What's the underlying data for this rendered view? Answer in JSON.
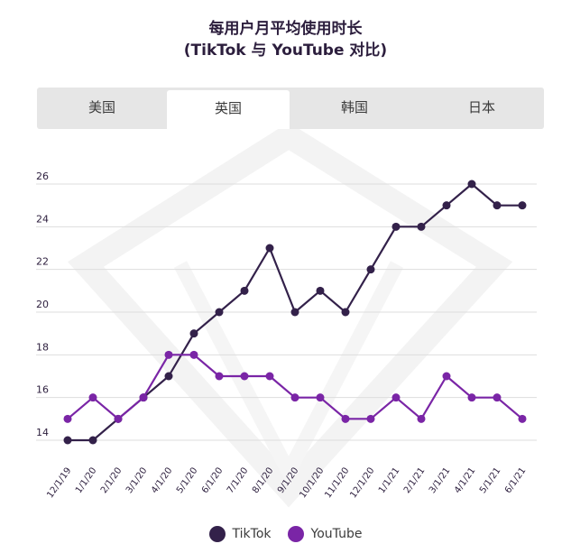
{
  "title_line1": "每用户月平均使用时长",
  "title_line2": "(TikTok 与 YouTube 对比)",
  "tabs": [
    {
      "label": "美国",
      "active": false
    },
    {
      "label": "英国",
      "active": true
    },
    {
      "label": "韩国",
      "active": false
    },
    {
      "label": "日本",
      "active": false
    }
  ],
  "colors": {
    "tiktok": "#33214a",
    "youtube": "#7a25a6",
    "grid": "#dddddd",
    "text": "#2c1e3d"
  },
  "chart_data": {
    "type": "line",
    "title": "每用户月平均使用时长 (TikTok 与 YouTube 对比)",
    "categories": [
      "12/1/19",
      "1/1/20",
      "2/1/20",
      "3/1/20",
      "4/1/20",
      "5/1/20",
      "6/1/20",
      "7/1/20",
      "8/1/20",
      "9/1/20",
      "10/1/20",
      "11/1/20",
      "12/1/20",
      "1/1/21",
      "2/1/21",
      "3/1/21",
      "4/1/21",
      "5/1/21",
      "6/1/21"
    ],
    "y_ticks": [
      14,
      16,
      18,
      20,
      22,
      24,
      26
    ],
    "ylim": [
      13,
      27
    ],
    "xlabel": "",
    "ylabel": "",
    "grid": true,
    "legend": "bottom-center",
    "series": [
      {
        "name": "TikTok",
        "color": "#33214a",
        "values": [
          14,
          14,
          15,
          16,
          17,
          19,
          20,
          21,
          23,
          20,
          21,
          20,
          22,
          24,
          24,
          25,
          26,
          25,
          25
        ]
      },
      {
        "name": "YouTube",
        "color": "#7a25a6",
        "values": [
          15,
          16,
          15,
          16,
          18,
          18,
          17,
          17,
          17,
          16,
          16,
          15,
          15,
          16,
          15,
          17,
          16,
          16,
          15
        ]
      }
    ]
  }
}
